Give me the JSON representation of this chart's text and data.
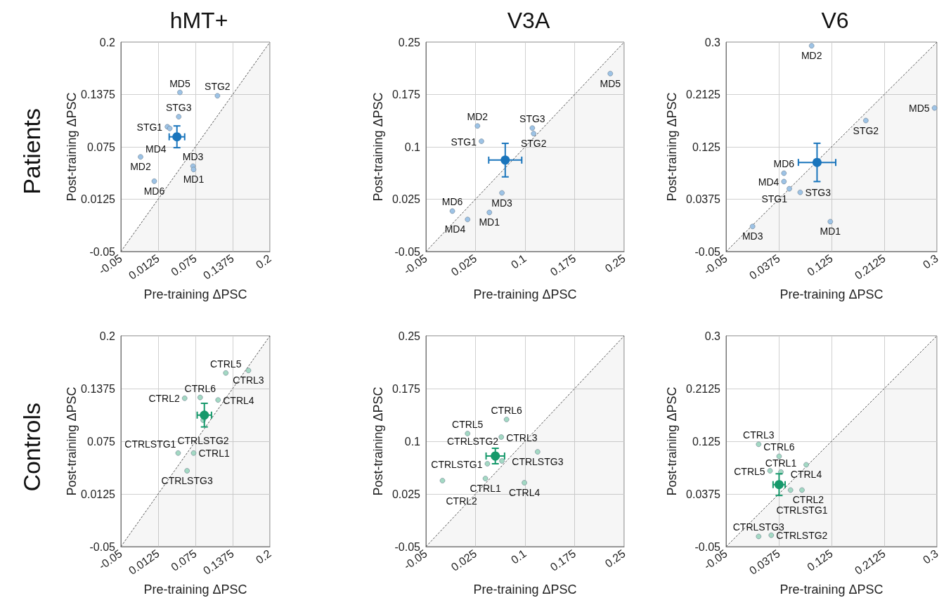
{
  "chart_data": [
    {
      "type": "scatter",
      "title": "hMT+",
      "xlabel": "Pre-training ΔPSC",
      "ylabel": "Post-training ΔPSC",
      "xlim": [
        -0.05,
        0.2
      ],
      "ylim": [
        -0.05,
        0.2
      ],
      "xticks": [
        -0.05,
        0.0125,
        0.075,
        0.1375,
        0.2
      ],
      "yticks": [
        -0.05,
        0.0125,
        0.075,
        0.1375,
        0.2
      ],
      "grid": true,
      "marker": "circle",
      "series": [
        {
          "type": "area",
          "color": "#555555",
          "line_style": "dashed",
          "marker": "none",
          "x": [
            -0.05,
            0.2
          ],
          "values": [
            -0.05,
            0.2
          ]
        },
        {
          "color": "#9dc3e6",
          "x": [
            0.049,
            0.112,
            0.047,
            0.028,
            0.032,
            -0.017,
            0.071,
            0.072,
            0.006
          ],
          "values": [
            0.14,
            0.136,
            0.111,
            0.099,
            0.097,
            0.063,
            0.052,
            0.048,
            0.034
          ]
        },
        {
          "color": "#1a75bc",
          "x": [
            0.044
          ],
          "values": [
            0.087
          ],
          "errors": [
            0.013
          ],
          "xerrors": [
            0.013
          ]
        }
      ],
      "annotations": [
        "Patients",
        {
          "text": "MD5",
          "x": 0.049,
          "y": 0.14
        },
        {
          "text": "STG2",
          "x": 0.112,
          "y": 0.136
        },
        {
          "text": "STG3",
          "x": 0.047,
          "y": 0.111
        },
        {
          "text": "STG1",
          "x": 0.028,
          "y": 0.099
        },
        {
          "text": "MD4",
          "x": 0.032,
          "y": 0.097
        },
        {
          "text": "MD2",
          "x": -0.017,
          "y": 0.063
        },
        {
          "text": "MD3",
          "x": 0.071,
          "y": 0.052
        },
        {
          "text": "MD1",
          "x": 0.072,
          "y": 0.048
        },
        {
          "text": "MD6",
          "x": 0.006,
          "y": 0.034
        }
      ]
    },
    {
      "type": "scatter",
      "title": "V3A",
      "xlabel": "Pre-training ΔPSC",
      "ylabel": "Post-training ΔPSC",
      "xlim": [
        -0.05,
        0.25
      ],
      "ylim": [
        -0.05,
        0.25
      ],
      "xticks": [
        -0.05,
        0.025,
        0.1,
        0.175,
        0.25
      ],
      "yticks": [
        -0.05,
        0.025,
        0.1,
        0.175,
        0.25
      ],
      "grid": true,
      "marker": "circle",
      "series": [
        {
          "type": "area",
          "color": "#555555",
          "line_style": "dashed",
          "marker": "none",
          "x": [
            -0.05,
            0.25
          ],
          "values": [
            -0.05,
            0.25
          ]
        },
        {
          "color": "#9dc3e6",
          "x": [
            0.229,
            0.028,
            0.111,
            0.113,
            0.034,
            0.065,
            0.046,
            -0.01,
            0.013
          ],
          "values": [
            0.205,
            0.13,
            0.127,
            0.119,
            0.108,
            0.034,
            0.006,
            0.008,
            -0.004
          ]
        },
        {
          "color": "#1a75bc",
          "x": [
            0.07
          ],
          "values": [
            0.081
          ],
          "errors": [
            0.024
          ],
          "xerrors": [
            0.025
          ]
        }
      ],
      "annotations": [
        {
          "text": "MD5",
          "x": 0.229,
          "y": 0.205
        },
        {
          "text": "MD2",
          "x": 0.028,
          "y": 0.13
        },
        {
          "text": "STG3",
          "x": 0.111,
          "y": 0.127
        },
        {
          "text": "STG2",
          "x": 0.113,
          "y": 0.119
        },
        {
          "text": "STG1",
          "x": 0.034,
          "y": 0.108
        },
        {
          "text": "MD3",
          "x": 0.065,
          "y": 0.034
        },
        {
          "text": "MD1",
          "x": 0.046,
          "y": 0.006
        },
        {
          "text": "MD6",
          "x": -0.01,
          "y": 0.008
        },
        {
          "text": "MD4",
          "x": 0.013,
          "y": -0.004
        }
      ]
    },
    {
      "type": "scatter",
      "title": "V6",
      "xlabel": "Pre-training ΔPSC",
      "ylabel": "Post-training ΔPSC",
      "xlim": [
        -0.05,
        0.3
      ],
      "ylim": [
        -0.05,
        0.3
      ],
      "xticks": [
        -0.05,
        0.0375,
        0.125,
        0.2125,
        0.3
      ],
      "yticks": [
        -0.05,
        0.0375,
        0.125,
        0.2125,
        0.3
      ],
      "grid": true,
      "marker": "circle",
      "series": [
        {
          "type": "area",
          "color": "#555555",
          "line_style": "dashed",
          "marker": "none",
          "x": [
            -0.05,
            0.3
          ],
          "values": [
            -0.05,
            0.3
          ]
        },
        {
          "color": "#9dc3e6",
          "x": [
            0.092,
            0.296,
            0.182,
            0.046,
            0.046,
            0.055,
            0.073,
            0.123,
            -0.006
          ],
          "values": [
            0.294,
            0.19,
            0.169,
            0.081,
            0.067,
            0.055,
            0.049,
            0.0,
            -0.008
          ]
        },
        {
          "color": "#1a75bc",
          "x": [
            0.101
          ],
          "values": [
            0.099
          ],
          "errors": [
            0.032
          ],
          "xerrors": [
            0.031
          ]
        }
      ],
      "annotations": [
        {
          "text": "MD2",
          "x": 0.092,
          "y": 0.294
        },
        {
          "text": "MD5",
          "x": 0.296,
          "y": 0.19
        },
        {
          "text": "STG2",
          "x": 0.182,
          "y": 0.169
        },
        {
          "text": "MD6",
          "x": 0.046,
          "y": 0.081
        },
        {
          "text": "MD4",
          "x": 0.046,
          "y": 0.067
        },
        {
          "text": "STG1",
          "x": 0.055,
          "y": 0.055
        },
        {
          "text": "STG3",
          "x": 0.073,
          "y": 0.049
        },
        {
          "text": "MD1",
          "x": 0.123,
          "y": 0.0
        },
        {
          "text": "MD3",
          "x": -0.006,
          "y": -0.008
        }
      ]
    },
    {
      "type": "scatter",
      "xlabel": "Pre-training ΔPSC",
      "ylabel": "Post-training ΔPSC",
      "xlim": [
        -0.05,
        0.2
      ],
      "ylim": [
        -0.05,
        0.2
      ],
      "xticks": [
        -0.05,
        0.0125,
        0.075,
        0.1375,
        0.2
      ],
      "yticks": [
        -0.05,
        0.0125,
        0.075,
        0.1375,
        0.2
      ],
      "grid": true,
      "marker": "circle",
      "series": [
        {
          "type": "area",
          "color": "#555555",
          "line_style": "dashed",
          "marker": "none",
          "x": [
            -0.05,
            0.2
          ],
          "values": [
            -0.05,
            0.2
          ]
        },
        {
          "color": "#a3d9c3",
          "x": [
            0.126,
            0.164,
            0.057,
            0.083,
            0.113,
            0.088,
            0.046,
            0.072,
            0.061
          ],
          "values": [
            0.156,
            0.159,
            0.126,
            0.127,
            0.124,
            0.1,
            0.061,
            0.061,
            0.04
          ]
        },
        {
          "color": "#16996b",
          "x": [
            0.09
          ],
          "values": [
            0.106
          ],
          "errors": [
            0.014
          ],
          "xerrors": [
            0.012
          ]
        }
      ],
      "annotations": [
        "Controls",
        {
          "text": "CTRL5",
          "x": 0.126,
          "y": 0.156
        },
        {
          "text": "CTRL3",
          "x": 0.164,
          "y": 0.159
        },
        {
          "text": "CTRL2",
          "x": 0.057,
          "y": 0.126
        },
        {
          "text": "CTRL6",
          "x": 0.083,
          "y": 0.127
        },
        {
          "text": "CTRL4",
          "x": 0.113,
          "y": 0.124
        },
        {
          "text": "CTRLSTG2",
          "x": 0.088,
          "y": 0.1
        },
        {
          "text": "CTRLSTG1",
          "x": 0.046,
          "y": 0.061
        },
        {
          "text": "CTRL1",
          "x": 0.072,
          "y": 0.061
        },
        {
          "text": "CTRLSTG3",
          "x": 0.061,
          "y": 0.04
        }
      ]
    },
    {
      "type": "scatter",
      "xlabel": "Pre-training ΔPSC",
      "ylabel": "Post-training ΔPSC",
      "xlim": [
        -0.05,
        0.25
      ],
      "ylim": [
        -0.05,
        0.25
      ],
      "xticks": [
        -0.05,
        0.025,
        0.1,
        0.175,
        0.25
      ],
      "yticks": [
        -0.05,
        0.025,
        0.1,
        0.175,
        0.25
      ],
      "grid": true,
      "marker": "circle",
      "series": [
        {
          "type": "area",
          "color": "#555555",
          "line_style": "dashed",
          "marker": "none",
          "x": [
            -0.05,
            0.25
          ],
          "values": [
            -0.05,
            0.25
          ]
        },
        {
          "color": "#a3d9c3",
          "x": [
            0.072,
            0.013,
            0.064,
            0.119,
            0.065,
            0.043,
            0.04,
            0.099,
            -0.025
          ],
          "values": [
            0.131,
            0.111,
            0.106,
            0.085,
            0.072,
            0.068,
            0.047,
            0.041,
            0.044
          ]
        },
        {
          "color": "#16996b",
          "x": [
            0.055
          ],
          "values": [
            0.079
          ],
          "errors": [
            0.011
          ],
          "xerrors": [
            0.014
          ]
        }
      ],
      "annotations": [
        {
          "text": "CTRL6",
          "x": 0.072,
          "y": 0.131
        },
        {
          "text": "CTRL5",
          "x": 0.013,
          "y": 0.111
        },
        {
          "text": "CTRL3",
          "x": 0.064,
          "y": 0.106
        },
        {
          "text": "CTRLSTG3",
          "x": 0.119,
          "y": 0.085
        },
        {
          "text": "CTRLSTG2",
          "x": 0.065,
          "y": 0.072
        },
        {
          "text": "CTRLSTG1",
          "x": 0.043,
          "y": 0.068
        },
        {
          "text": "CTRL1",
          "x": 0.04,
          "y": 0.047
        },
        {
          "text": "CTRL4",
          "x": 0.099,
          "y": 0.041
        },
        {
          "text": "CTRL2",
          "x": -0.025,
          "y": 0.044
        }
      ]
    },
    {
      "type": "scatter",
      "xlabel": "Pre-training ΔPSC",
      "ylabel": "Post-training ΔPSC",
      "xlim": [
        -0.05,
        0.3
      ],
      "ylim": [
        -0.05,
        0.3
      ],
      "xticks": [
        -0.05,
        0.0375,
        0.125,
        0.2125,
        0.3
      ],
      "yticks": [
        -0.05,
        0.0375,
        0.125,
        0.2125,
        0.3
      ],
      "grid": true,
      "marker": "circle",
      "series": [
        {
          "type": "area",
          "color": "#555555",
          "line_style": "dashed",
          "marker": "none",
          "x": [
            -0.05,
            0.3
          ],
          "values": [
            -0.05,
            0.3
          ]
        },
        {
          "color": "#a3d9c3",
          "x": [
            0.004,
            0.038,
            0.083,
            0.023,
            0.041,
            0.057,
            0.076,
            0.004,
            0.025
          ],
          "values": [
            0.12,
            0.1,
            0.086,
            0.076,
            0.074,
            0.044,
            0.044,
            -0.033,
            -0.031
          ]
        },
        {
          "color": "#16996b",
          "x": [
            0.038
          ],
          "values": [
            0.053
          ],
          "errors": [
            0.018
          ],
          "xerrors": [
            0.01
          ]
        }
      ],
      "annotations": [
        {
          "text": "CTRL3",
          "x": 0.004,
          "y": 0.12
        },
        {
          "text": "CTRL6",
          "x": 0.038,
          "y": 0.1
        },
        {
          "text": "CTRL4",
          "x": 0.083,
          "y": 0.086
        },
        {
          "text": "CTRL5",
          "x": 0.023,
          "y": 0.076
        },
        {
          "text": "CTRL1",
          "x": 0.041,
          "y": 0.074
        },
        {
          "text": "CTRL2",
          "x": 0.057,
          "y": 0.044
        },
        {
          "text": "CTRLSTG1",
          "x": 0.076,
          "y": 0.044
        },
        {
          "text": "CTRLSTG3",
          "x": 0.004,
          "y": -0.033
        },
        {
          "text": "CTRLSTG2",
          "x": 0.025,
          "y": -0.031
        }
      ]
    }
  ]
}
